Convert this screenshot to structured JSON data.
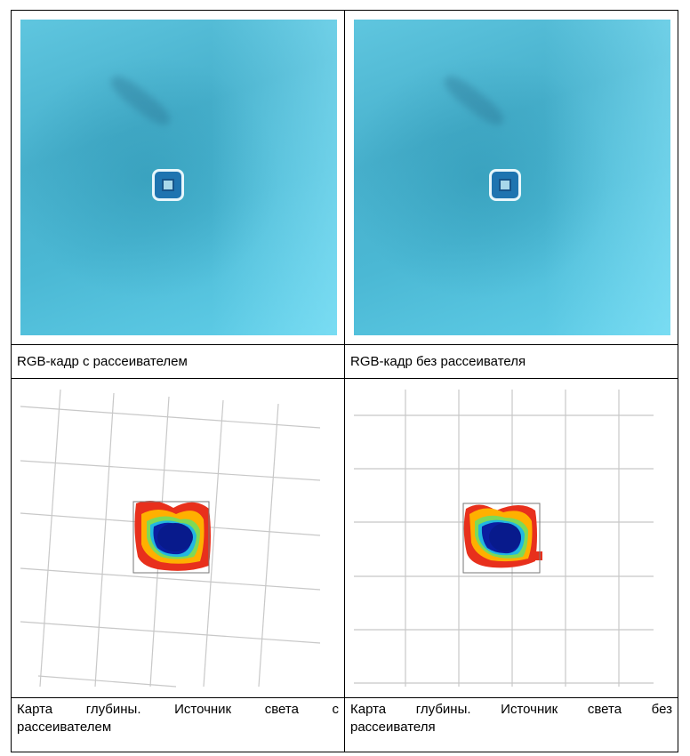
{
  "cells": {
    "rgb_with": {
      "caption": "RGB-кадр с рассеивателем"
    },
    "rgb_without": {
      "caption": "RGB-кадр без рассеивателя"
    },
    "depth_with": {
      "caption_line1": "Карта глубины. Источник света с",
      "caption_line2": "рассеивателем"
    },
    "depth_without": {
      "caption_line1": "Карта глубины. Источник света без",
      "caption_line2": "рассеивателя"
    }
  },
  "colors": {
    "water": "#4bb8d4",
    "object_blue": "#1e74b0",
    "grid_line": "#c8c8c8",
    "depth_near": "#0a1ea0",
    "depth_far": "#e8301c"
  }
}
